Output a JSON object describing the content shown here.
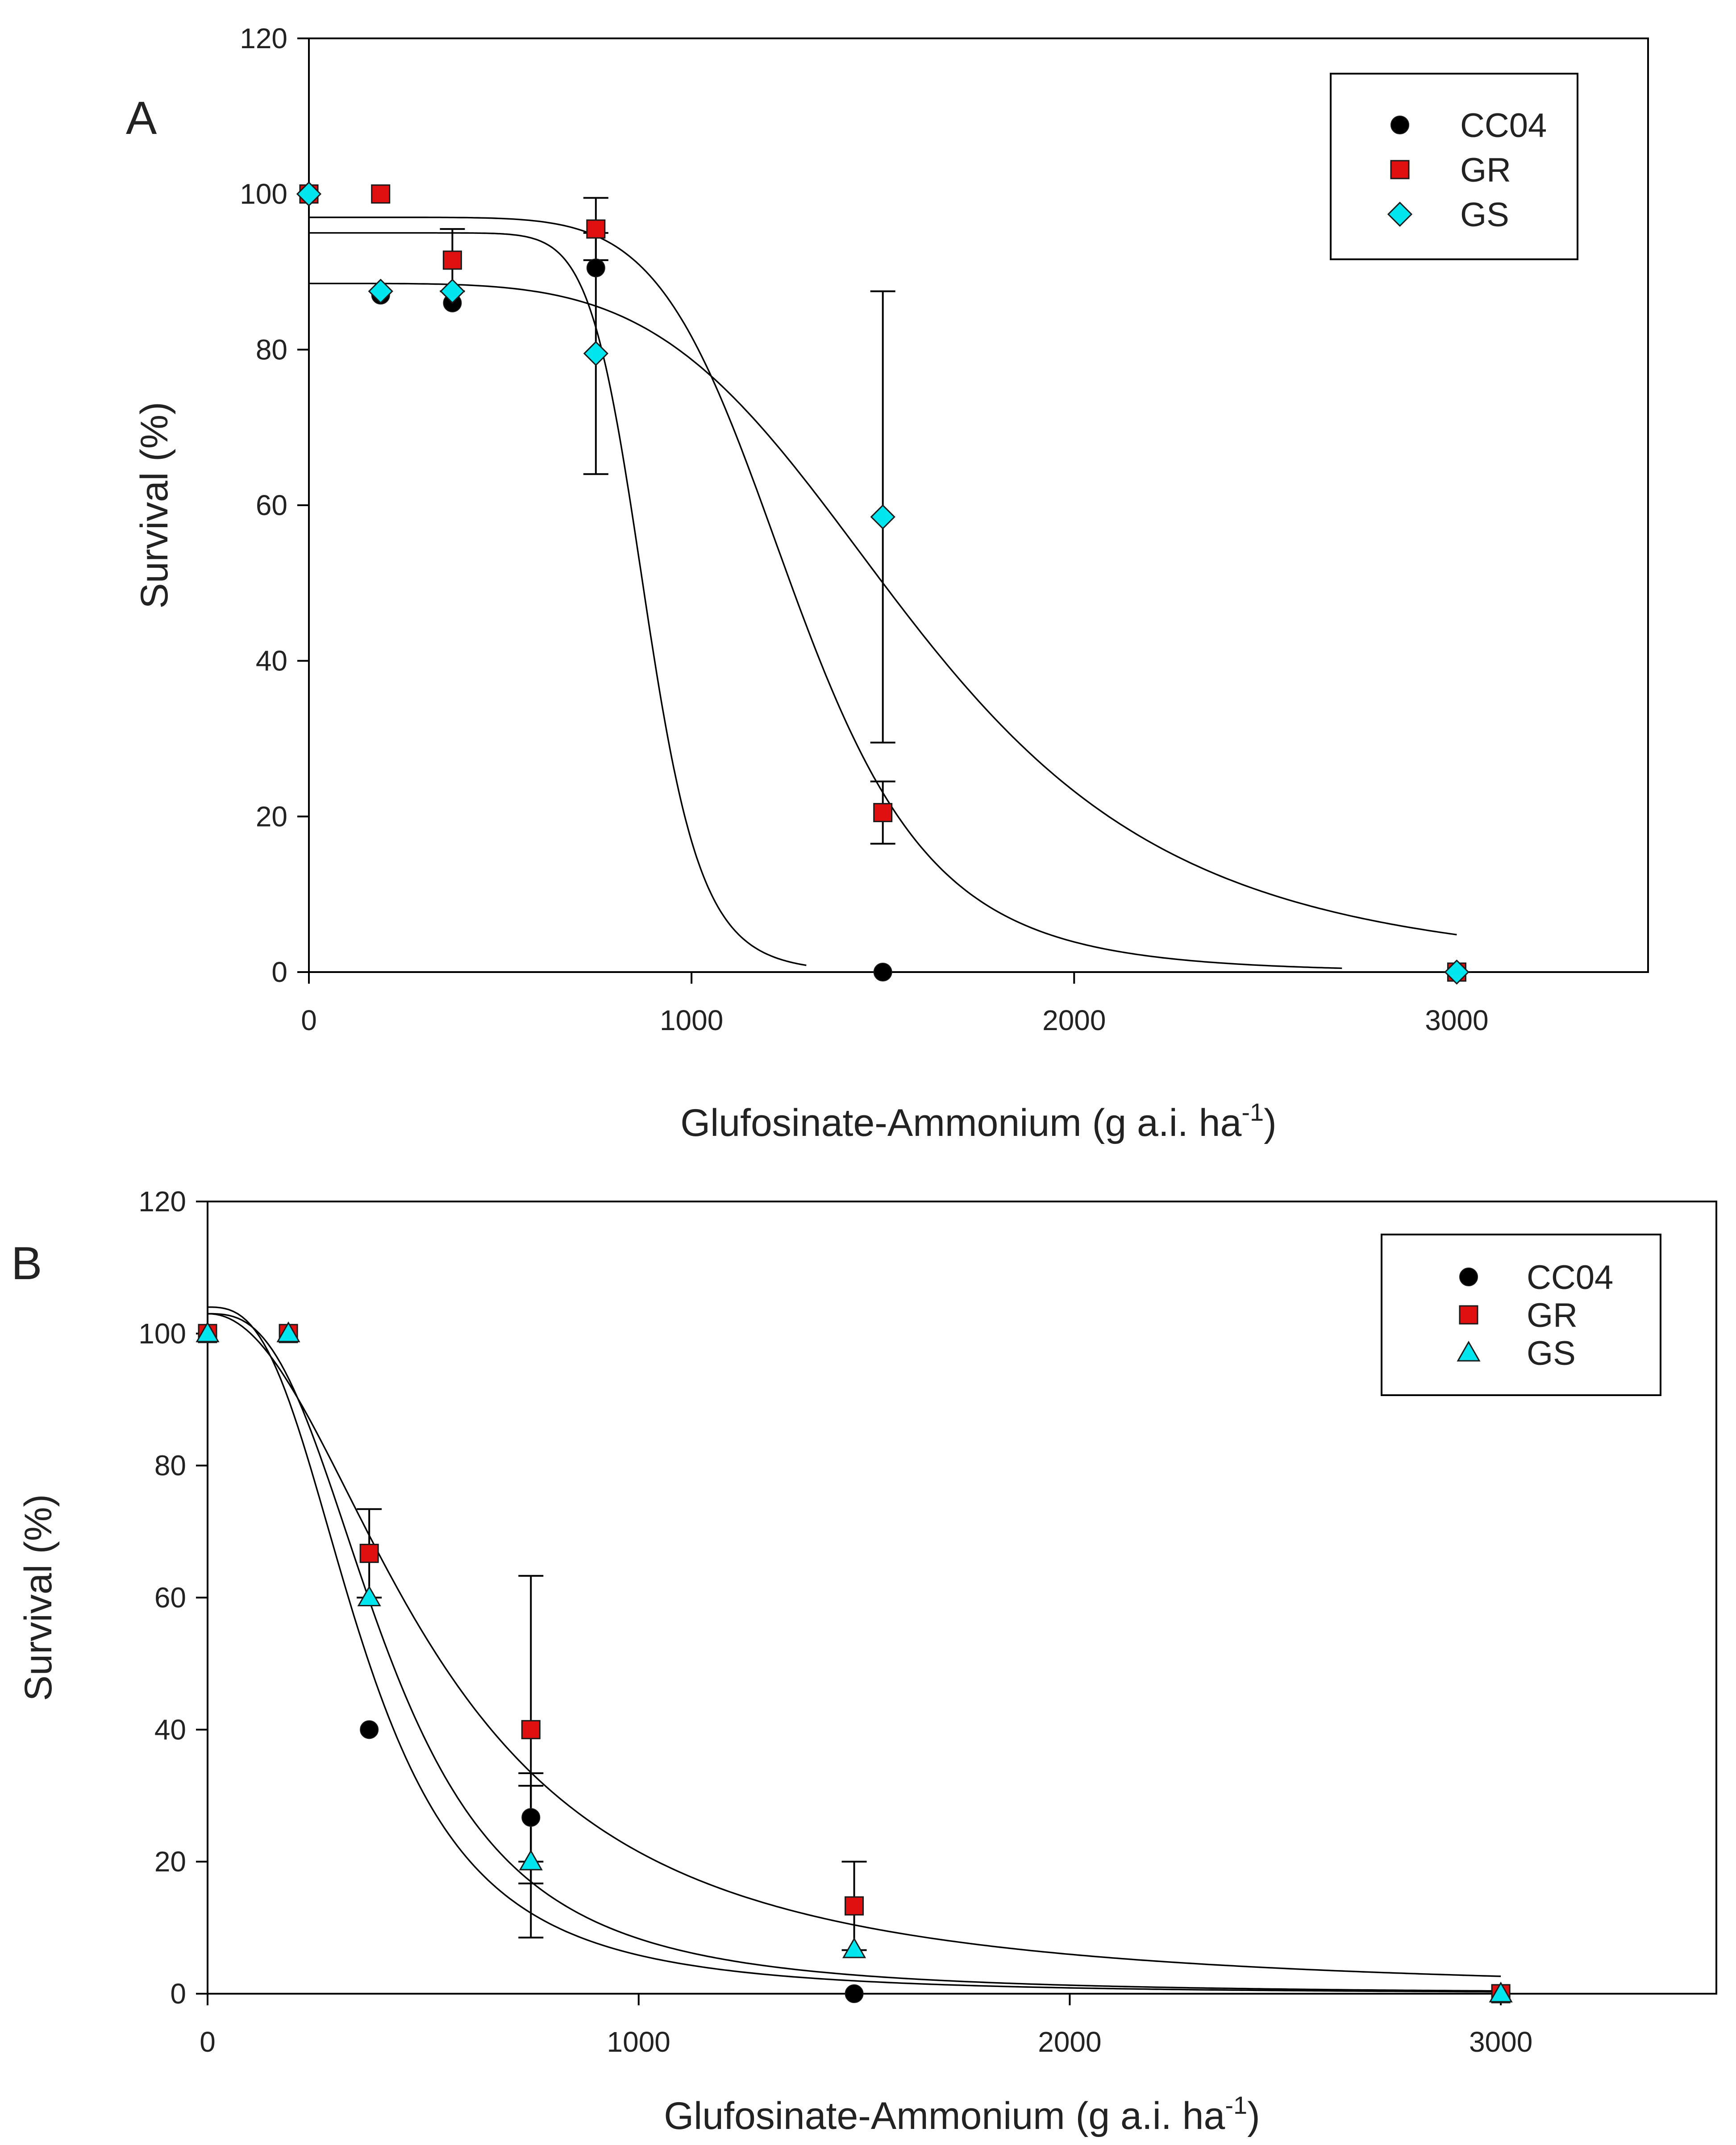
{
  "chart_data": [
    {
      "panel": "A",
      "type": "scatter",
      "xlabel": "Glufosinate-Ammonium (g a.i. ha",
      "xlabel_sup": "-1",
      "xlabel_close": ")",
      "ylabel": "Survival (%)",
      "xlim": [
        0,
        3500
      ],
      "ylim": [
        0,
        120
      ],
      "xticks": [
        0,
        1000,
        2000,
        3000
      ],
      "yticks": [
        0,
        20,
        40,
        60,
        80,
        100,
        120
      ],
      "legend_position": "top-right",
      "colors": {
        "CC04": "#000000",
        "GR": "#e01010",
        "GS": "#00e5ee"
      },
      "series": [
        {
          "name": "CC04",
          "marker": "circle",
          "x": [
            0,
            187.5,
            375,
            750,
            1500,
            3000
          ],
          "y": [
            100,
            87,
            86,
            90.5,
            0,
            0
          ],
          "err": [
            0,
            0,
            0,
            0,
            0,
            0
          ],
          "fit": {
            "top": 95,
            "x50": 880,
            "slope": 12,
            "xmax": 1300
          }
        },
        {
          "name": "GR",
          "marker": "square",
          "x": [
            0,
            187.5,
            375,
            750,
            1500,
            3000
          ],
          "y": [
            100,
            100,
            91.5,
            95.5,
            20.5,
            0
          ],
          "err": [
            0,
            0,
            4,
            4,
            4,
            0
          ],
          "fit": {
            "top": 97,
            "x50": 1270,
            "slope": 7,
            "xmax": 2700
          }
        },
        {
          "name": "GS",
          "marker": "diamond",
          "x": [
            0,
            187.5,
            375,
            750,
            1500,
            3000
          ],
          "y": [
            100,
            87.5,
            87.5,
            79.5,
            58.5,
            0
          ],
          "err": [
            0,
            0,
            0,
            15.5,
            29,
            0
          ],
          "fit": {
            "top": 88.5,
            "x50": 1590,
            "slope": 4.5,
            "xmax": 3000
          }
        }
      ]
    },
    {
      "panel": "B",
      "type": "scatter",
      "xlabel": "Glufosinate-Ammonium (g a.i. ha",
      "xlabel_sup": "-1",
      "xlabel_close": ")",
      "ylabel": "Survival (%)",
      "xlim": [
        0,
        3500
      ],
      "ylim": [
        0,
        120
      ],
      "xticks": [
        0,
        1000,
        2000,
        3000
      ],
      "yticks": [
        0,
        20,
        40,
        60,
        80,
        100,
        120
      ],
      "legend_position": "top-right",
      "colors": {
        "CC04": "#000000",
        "GR": "#e01010",
        "GS": "#00e5ee"
      },
      "series": [
        {
          "name": "CC04",
          "marker": "circle",
          "x": [
            0,
            187.5,
            375,
            750,
            1500,
            3000
          ],
          "y": [
            100,
            100,
            40,
            26.7,
            0,
            0
          ],
          "err": [
            0,
            0,
            0,
            6.7,
            0,
            0
          ],
          "fit": {
            "top": 104,
            "x50": 365,
            "slope": 2.8,
            "xmax": 3000
          }
        },
        {
          "name": "GR",
          "marker": "square",
          "x": [
            0,
            187.5,
            375,
            750,
            1500,
            3000
          ],
          "y": [
            100,
            100,
            66.7,
            40,
            13.3,
            0
          ],
          "err": [
            0,
            0,
            6.7,
            23.3,
            6.7,
            0
          ],
          "fit": {
            "top": 103,
            "x50": 530,
            "slope": 2.1,
            "xmax": 3000
          }
        },
        {
          "name": "GS",
          "marker": "triangle",
          "x": [
            0,
            187.5,
            375,
            750,
            1500,
            3000
          ],
          "y": [
            100,
            100,
            60,
            20,
            6.7,
            0
          ],
          "err": [
            0,
            0,
            0,
            11.5,
            0,
            0
          ],
          "fit": {
            "top": 103,
            "x50": 420,
            "slope": 2.8,
            "xmax": 3000
          }
        }
      ]
    }
  ]
}
